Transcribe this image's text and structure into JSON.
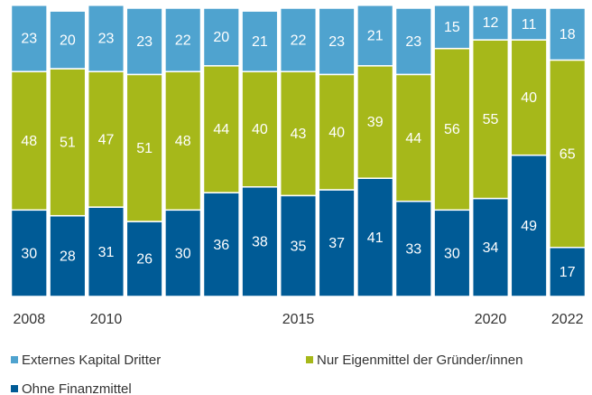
{
  "chart_data": {
    "type": "stacked_bar",
    "categories": [
      "2008",
      null,
      "2010",
      null,
      null,
      null,
      null,
      "2015",
      null,
      null,
      null,
      null,
      "2020",
      null,
      "2022"
    ],
    "series": [
      {
        "name": "Ohne Finanzmittel",
        "color": "#005b96",
        "values": [
          30,
          28,
          31,
          26,
          30,
          36,
          38,
          35,
          37,
          41,
          33,
          30,
          34,
          49,
          17
        ]
      },
      {
        "name": "Nur Eigenmittel der Gründer/innen",
        "color": "#a6b81a",
        "values": [
          48,
          51,
          47,
          51,
          48,
          44,
          40,
          43,
          40,
          39,
          44,
          56,
          55,
          40,
          65
        ]
      },
      {
        "name": "Externes Kapital Dritter",
        "color": "#4fa3cf",
        "values": [
          23,
          20,
          23,
          23,
          22,
          20,
          21,
          22,
          23,
          21,
          23,
          15,
          12,
          11,
          18
        ]
      }
    ],
    "ylim": [
      0,
      100
    ]
  }
}
